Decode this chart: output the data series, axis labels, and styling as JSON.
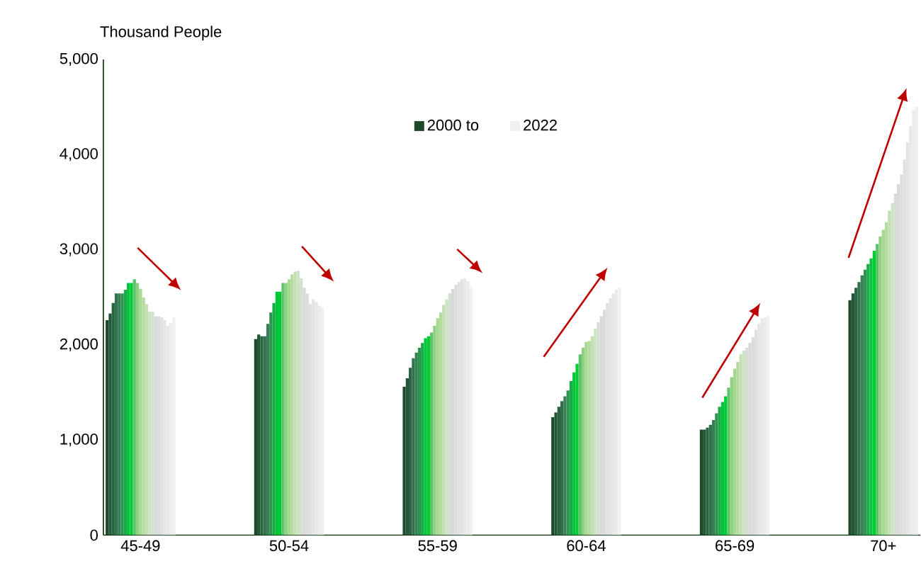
{
  "chart_data": {
    "type": "bar",
    "ylabel": "Thousand People",
    "categories": [
      "45-49",
      "50-54",
      "55-59",
      "60-64",
      "65-69",
      "70+"
    ],
    "ylim": [
      0,
      5000
    ],
    "yticks": [
      0,
      {
        "value": 1000,
        "label": "1,000"
      },
      {
        "value": 2000,
        "label": "2,000"
      },
      {
        "value": 3000,
        "label": "3,000"
      },
      {
        "value": 4000,
        "label": "4,000"
      },
      {
        "value": 5000,
        "label": "5,000"
      }
    ],
    "legend": "top",
    "grid": false,
    "series": [
      {
        "name": "2000 to",
        "color": "#1e4a2a",
        "values": [
          2260,
          2060,
          1560,
          1240,
          1110,
          2470
        ]
      },
      {
        "color": "#23573a",
        "values": [
          2330,
          2110,
          1650,
          1290,
          1110,
          2540
        ]
      },
      {
        "color": "#2a6443",
        "values": [
          2440,
          2090,
          1760,
          1350,
          1130,
          2600
        ]
      },
      {
        "color": "#31724d",
        "values": [
          2540,
          2090,
          1860,
          1410,
          1160,
          2660
        ]
      },
      {
        "color": "#388056",
        "values": [
          2540,
          2220,
          1920,
          1460,
          1210,
          2730
        ]
      },
      {
        "color": "#2f9450",
        "values": [
          2540,
          2340,
          1970,
          1520,
          1280,
          2790
        ]
      },
      {
        "color": "#1aab48",
        "values": [
          2580,
          2440,
          2020,
          1620,
          1350,
          2850
        ]
      },
      {
        "color": "#00c43c",
        "values": [
          2650,
          2560,
          2070,
          1710,
          1400,
          2910
        ]
      },
      {
        "color": "#00cc33",
        "values": [
          2650,
          2560,
          2090,
          1800,
          1460,
          2990
        ]
      },
      {
        "color": "#5cc46a",
        "values": [
          2690,
          2650,
          2130,
          1900,
          1550,
          3060
        ]
      },
      {
        "color": "#8fd080",
        "values": [
          2650,
          2650,
          2200,
          1970,
          1660,
          3140
        ]
      },
      {
        "color": "#a5d890",
        "values": [
          2590,
          2690,
          2280,
          2030,
          1750,
          3210
        ]
      },
      {
        "color": "#b5dca0",
        "values": [
          2500,
          2740,
          2340,
          2040,
          1820,
          3290
        ]
      },
      {
        "color": "#c3e0b3",
        "values": [
          2430,
          2770,
          2420,
          2090,
          1900,
          3410
        ]
      },
      {
        "color": "#cfe3c5",
        "values": [
          2350,
          2780,
          2480,
          2170,
          1940,
          3490
        ]
      },
      {
        "color": "#d6dfd3",
        "values": [
          2350,
          2700,
          2540,
          2240,
          1970,
          3590
        ]
      },
      {
        "color": "#d9d9d9",
        "values": [
          2300,
          2600,
          2590,
          2300,
          2020,
          3690
        ]
      },
      {
        "color": "#dcdcdc",
        "values": [
          2300,
          2540,
          2630,
          2370,
          2080,
          3790
        ]
      },
      {
        "color": "#e0e0e0",
        "values": [
          2290,
          2430,
          2660,
          2440,
          2160,
          3950
        ]
      },
      {
        "color": "#e4e4e4",
        "values": [
          2260,
          2480,
          2690,
          2490,
          2220,
          4130
        ]
      },
      {
        "color": "#e8e8e8",
        "values": [
          2200,
          2450,
          2700,
          2540,
          2280,
          4300
        ]
      },
      {
        "color": "#ececec",
        "values": [
          2230,
          2410,
          2670,
          2580,
          2290,
          4470
        ]
      },
      {
        "name": "2022",
        "color": "#f0f0f0",
        "values": [
          2290,
          2390,
          2610,
          2600,
          2300,
          4500
        ]
      }
    ]
  }
}
